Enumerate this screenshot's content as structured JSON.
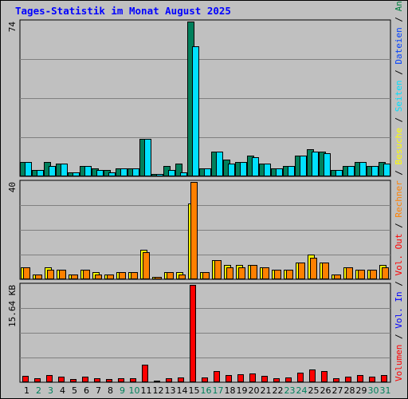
{
  "title": "Tages-Statistik im Monat August 2025",
  "legend": {
    "sep": " / ",
    "anfragen": "Anfragen",
    "dateien": "Dateien",
    "seiten": "Seiten",
    "besuche": "Besuche",
    "rechner": "Rechner",
    "vol_out": "Vol. Out",
    "vol_in": "Vol. In",
    "volumen": "Volumen"
  },
  "colors": {
    "anfragen": "#008040",
    "dateien": "#0040ff",
    "seiten": "#00e0ff",
    "besuche": "#ffff00",
    "rechner": "#ff8000",
    "vol_out": "#ff0000",
    "vol_in": "#0000ff",
    "volumen": "#ff0000",
    "weekend_day": "#00805c",
    "weekday": "#000000"
  },
  "chart_data": [
    {
      "type": "bar",
      "scale_label": "74",
      "ylim": [
        0,
        74
      ],
      "categories": [
        "1",
        "2",
        "3",
        "4",
        "5",
        "6",
        "7",
        "8",
        "9",
        "10",
        "11",
        "12",
        "13",
        "14",
        "15",
        "16",
        "17",
        "18",
        "19",
        "20",
        "21",
        "22",
        "23",
        "24",
        "25",
        "26",
        "27",
        "28",
        "29",
        "30",
        "31"
      ],
      "weekend_days": [
        "2",
        "3",
        "9",
        "10",
        "16",
        "17",
        "23",
        "24",
        "30",
        "31"
      ],
      "series": [
        {
          "name": "Anfragen",
          "color": "#00805c",
          "values": [
            7,
            3,
            7,
            6,
            2,
            5,
            4,
            3,
            4,
            4,
            18,
            1,
            5,
            6,
            74,
            4,
            12,
            8,
            7,
            10,
            6,
            4,
            5,
            10,
            13,
            12,
            3,
            5,
            7,
            5,
            7
          ]
        },
        {
          "name": "Dateien",
          "color": "#0040ff",
          "values": [
            0,
            0,
            0,
            0,
            0,
            0,
            0,
            0,
            0,
            0,
            0,
            0,
            0,
            0,
            0,
            0,
            0,
            0,
            0,
            0,
            0,
            0,
            0,
            0,
            0,
            0,
            0,
            0,
            0,
            0,
            0
          ]
        },
        {
          "name": "Seiten",
          "color": "#00e0ff",
          "values": [
            7,
            3,
            5,
            6,
            2,
            5,
            3,
            2,
            4,
            4,
            18,
            1,
            3,
            2,
            62,
            4,
            12,
            6,
            7,
            9,
            6,
            4,
            5,
            10,
            12,
            11,
            3,
            5,
            7,
            5,
            6
          ]
        }
      ]
    },
    {
      "type": "bar",
      "scale_label": "40",
      "ylim": [
        0,
        40
      ],
      "categories": [
        "1",
        "2",
        "3",
        "4",
        "5",
        "6",
        "7",
        "8",
        "9",
        "10",
        "11",
        "12",
        "13",
        "14",
        "15",
        "16",
        "17",
        "18",
        "19",
        "20",
        "21",
        "22",
        "23",
        "24",
        "25",
        "26",
        "27",
        "28",
        "29",
        "30",
        "31"
      ],
      "series": [
        {
          "name": "Besuche",
          "color": "#ffff00",
          "values": [
            5,
            2,
            5,
            4,
            2,
            4,
            3,
            2,
            3,
            3,
            12,
            1,
            3,
            3,
            31,
            3,
            8,
            6,
            6,
            6,
            5,
            4,
            4,
            7,
            10,
            7,
            2,
            5,
            4,
            4,
            6
          ]
        },
        {
          "name": "Rechner",
          "color": "#ff8000",
          "values": [
            5,
            2,
            4,
            4,
            2,
            4,
            2,
            2,
            3,
            3,
            11,
            1,
            3,
            2,
            40,
            3,
            8,
            5,
            5,
            6,
            5,
            4,
            4,
            7,
            9,
            7,
            2,
            5,
            4,
            4,
            5
          ]
        }
      ]
    },
    {
      "type": "bar",
      "scale_label": "15.64 KB",
      "ylim": [
        0,
        15.64
      ],
      "unit": "KB",
      "categories": [
        "1",
        "2",
        "3",
        "4",
        "5",
        "6",
        "7",
        "8",
        "9",
        "10",
        "11",
        "12",
        "13",
        "14",
        "15",
        "16",
        "17",
        "18",
        "19",
        "20",
        "21",
        "22",
        "23",
        "24",
        "25",
        "26",
        "27",
        "28",
        "29",
        "30",
        "31"
      ],
      "series": [
        {
          "name": "Volumen",
          "color": "#ff0000",
          "values": [
            1.0,
            0.7,
            1.2,
            0.9,
            0.5,
            0.9,
            0.6,
            0.5,
            0.7,
            0.7,
            2.8,
            0.3,
            0.7,
            0.8,
            15.64,
            0.8,
            1.8,
            1.2,
            1.3,
            1.4,
            1.0,
            0.7,
            0.8,
            1.6,
            2.1,
            1.8,
            0.6,
            0.9,
            1.2,
            0.9,
            1.2
          ]
        }
      ]
    }
  ]
}
